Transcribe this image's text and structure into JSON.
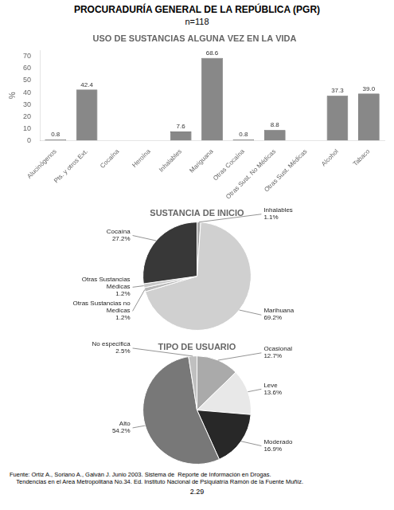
{
  "title": "PROCURADURÍA GENERAL DE LA REPÚBLICA (PGR)",
  "subtitle": "n=118",
  "annotations": [
    "Fuente: Ortiz A., Soriano A., Galván J. Junio 2003. Sistema de  Reporte de Información en Drogas.",
    "    Tendencias en el Area Metropolitana No.34. Ed. Instituto Nacional de Psiquiatría Ramón de la Fuente Muñiz.",
    "2.29"
  ],
  "chart_data": [
    {
      "type": "bar",
      "title": "USO DE SUSTANCIAS ALGUNA VEZ EN LA VIDA",
      "y_label": "%",
      "categories": [
        "Alucinógenos",
        "Pts. y otros Ext.",
        "Cocaína",
        "Heroína",
        "Inhalables",
        "Mariguana",
        "Otras Cocaína",
        "Otras Sust. No Médicas",
        "Otras Sust. Médicas",
        "Alcohol",
        "Tabaco"
      ],
      "values": [
        0.8,
        42.4,
        0.0,
        0.0,
        7.6,
        68.6,
        0.8,
        8.8,
        0.0,
        37.3,
        39.0
      ],
      "value_labels": [
        "0.8",
        "42.4",
        null,
        null,
        "7.6",
        "68.6",
        "0.8",
        "8.8",
        null,
        "37.3",
        "39.0"
      ],
      "data_labels": true,
      "color": "#888888",
      "ylim": [
        0,
        75
      ],
      "yticks": [
        0,
        10,
        20,
        30,
        40,
        50,
        60,
        70
      ],
      "grid": false
    },
    {
      "type": "pie",
      "title": "SUSTANCIA DE INICIO",
      "categories": [
        "Inhalables",
        "Marihuana",
        "Otras Sustancias no\nMedicas",
        "Otras Sustancias\nMédicas",
        "Cocaína"
      ],
      "values": [
        1.1,
        69.2,
        1.2,
        1.2,
        27.2
      ],
      "value_labels": [
        "1.1%",
        "69.2%",
        "1.2%",
        "1.2%",
        "27.2%"
      ],
      "data_labels": true,
      "colors": [
        "#aaaaaa",
        "#d0d0d0",
        "#b8b8b8",
        "#c8c8c8",
        "#383838"
      ]
    },
    {
      "type": "pie",
      "title": "TIPO DE USUARIO",
      "categories": [
        "Ocasional",
        "Leve",
        "Moderado",
        "Alto",
        "No especifica"
      ],
      "values": [
        12.7,
        13.6,
        16.9,
        54.2,
        2.5
      ],
      "value_labels": [
        "12.7%",
        "13.6%",
        "16.9%",
        "54.2%",
        "2.5%"
      ],
      "data_labels": true,
      "colors": [
        "#aaaaaa",
        "#e8e8e8",
        "#282828",
        "#787878",
        "#c0c0c0"
      ]
    }
  ]
}
